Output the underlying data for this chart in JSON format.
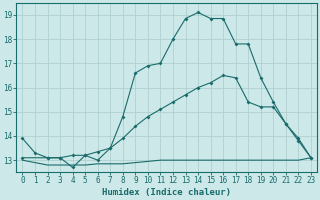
{
  "xlabel": "Humidex (Indice chaleur)",
  "bg_color": "#cce8e8",
  "grid_color": "#b0d0d0",
  "line_color": "#1a6b6b",
  "xlim": [
    -0.5,
    23.5
  ],
  "ylim": [
    12.5,
    19.5
  ],
  "xticks": [
    0,
    1,
    2,
    3,
    4,
    5,
    6,
    7,
    8,
    9,
    10,
    11,
    12,
    13,
    14,
    15,
    16,
    17,
    18,
    19,
    20,
    21,
    22,
    23
  ],
  "yticks": [
    13,
    14,
    15,
    16,
    17,
    18,
    19
  ],
  "line1_x": [
    0,
    1,
    2,
    3,
    4,
    5,
    6,
    7,
    8,
    9,
    10,
    11,
    12,
    13,
    14,
    15,
    16,
    17,
    18,
    19,
    20,
    21,
    22,
    23
  ],
  "line1_y": [
    13.9,
    13.3,
    13.1,
    13.1,
    12.7,
    13.2,
    13.0,
    13.5,
    14.8,
    16.6,
    16.9,
    17.0,
    18.0,
    18.85,
    19.1,
    18.85,
    18.85,
    17.8,
    17.8,
    16.4,
    15.4,
    14.5,
    13.8,
    13.1
  ],
  "line2_x": [
    0,
    2,
    3,
    4,
    5,
    6,
    7,
    8,
    9,
    10,
    11,
    12,
    13,
    14,
    15,
    16,
    17,
    18,
    19,
    20,
    21,
    22,
    23
  ],
  "line2_y": [
    13.1,
    13.1,
    13.1,
    13.2,
    13.2,
    13.35,
    13.5,
    13.9,
    14.4,
    14.8,
    15.1,
    15.4,
    15.7,
    16.0,
    16.2,
    16.5,
    16.4,
    15.4,
    15.2,
    15.2,
    14.5,
    13.9,
    13.1
  ],
  "line3_x": [
    0,
    2,
    3,
    4,
    5,
    6,
    7,
    8,
    9,
    10,
    11,
    12,
    13,
    14,
    15,
    16,
    17,
    18,
    19,
    20,
    21,
    22,
    23
  ],
  "line3_y": [
    13.0,
    12.8,
    12.8,
    12.8,
    12.8,
    12.85,
    12.85,
    12.85,
    12.9,
    12.95,
    13.0,
    13.0,
    13.0,
    13.0,
    13.0,
    13.0,
    13.0,
    13.0,
    13.0,
    13.0,
    13.0,
    13.0,
    13.1
  ]
}
